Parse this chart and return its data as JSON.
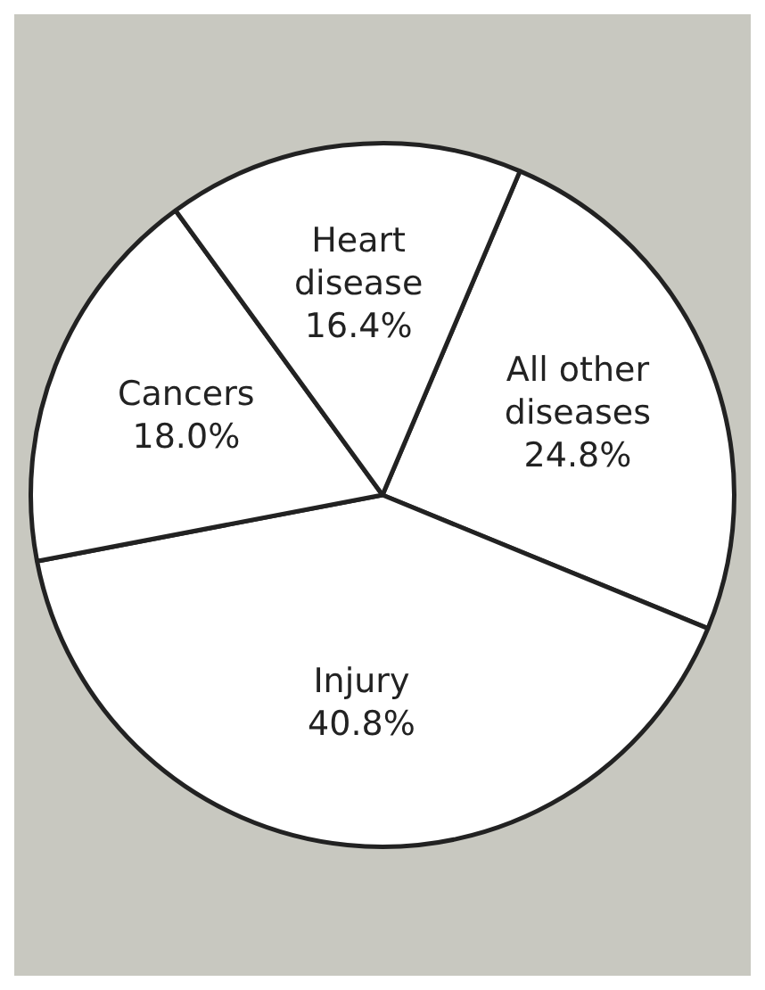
{
  "chart_data": {
    "type": "pie",
    "categories": [
      "All other diseases",
      "Injury",
      "Cancers",
      "Heart disease"
    ],
    "values": [
      24.8,
      40.8,
      18.0,
      16.4
    ],
    "value_labels": [
      "24.8%",
      "40.8%",
      "18.0%",
      "16.4%"
    ],
    "colors": [
      "#ffffff",
      "#ffffff",
      "#ffffff",
      "#ffffff"
    ],
    "legend": false
  }
}
